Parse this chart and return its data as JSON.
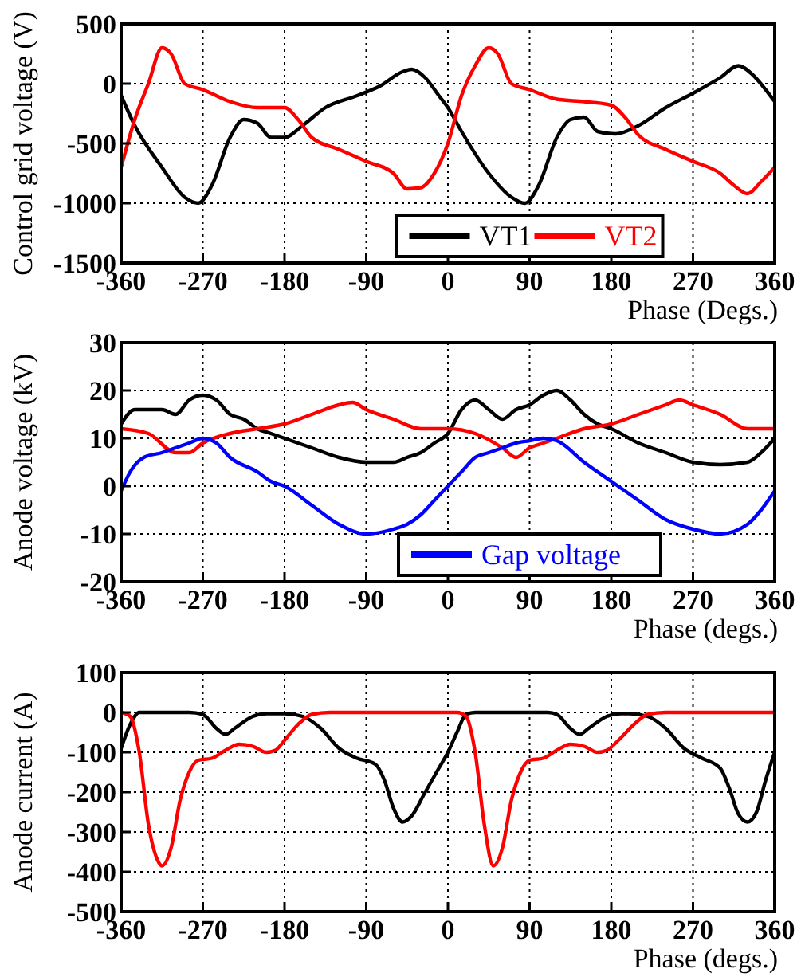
{
  "chart_data": [
    {
      "type": "line",
      "xlabel": "Phase (Degs.)",
      "ylabel": "Control grid voltage (V)",
      "xlim": [
        -360,
        360
      ],
      "xticks": [
        -360,
        -270,
        -180,
        -90,
        0,
        90,
        180,
        270,
        360
      ],
      "ylim": [
        -1500,
        500
      ],
      "yticks": [
        -1500,
        -1000,
        -500,
        0,
        500
      ],
      "grid": true,
      "legend": "bottom",
      "line_style": "solid",
      "series": [
        {
          "name": "VT1",
          "color": "#000000",
          "x": [
            -360,
            -345,
            -315,
            -290,
            -275,
            -260,
            -240,
            -225,
            -210,
            -195,
            -180,
            -160,
            -135,
            -100,
            -75,
            -50,
            -40,
            -25,
            -10,
            0,
            15,
            45,
            70,
            85,
            100,
            120,
            135,
            150,
            165,
            185,
            210,
            240,
            270,
            300,
            320,
            335,
            350,
            360
          ],
          "values": [
            -100,
            -350,
            -700,
            -950,
            -1000,
            -850,
            -450,
            -300,
            -330,
            -450,
            -450,
            -350,
            -200,
            -100,
            -20,
            100,
            120,
            50,
            -100,
            -200,
            -400,
            -750,
            -950,
            -1000,
            -850,
            -450,
            -300,
            -280,
            -400,
            -420,
            -350,
            -200,
            -80,
            50,
            150,
            80,
            -50,
            -150
          ]
        },
        {
          "name": "VT2",
          "color": "#ff0000",
          "x": [
            -360,
            -345,
            -330,
            -315,
            -305,
            -290,
            -270,
            -240,
            -210,
            -180,
            -165,
            -150,
            -120,
            -90,
            -60,
            -45,
            -30,
            -15,
            0,
            15,
            30,
            45,
            55,
            70,
            90,
            120,
            150,
            180,
            195,
            210,
            240,
            270,
            300,
            315,
            330,
            345,
            360
          ],
          "values": [
            -700,
            -300,
            0,
            300,
            250,
            0,
            -50,
            -150,
            -200,
            -200,
            -300,
            -450,
            -550,
            -650,
            -750,
            -880,
            -870,
            -750,
            -500,
            -100,
            150,
            300,
            250,
            0,
            -50,
            -130,
            -150,
            -180,
            -280,
            -430,
            -550,
            -650,
            -750,
            -850,
            -920,
            -820,
            -700
          ]
        }
      ]
    },
    {
      "type": "line",
      "xlabel": "Phase (degs.)",
      "ylabel": "Anode voltage (kV)",
      "xlim": [
        -360,
        360
      ],
      "xticks": [
        -360,
        -270,
        -180,
        -90,
        0,
        90,
        180,
        270,
        360
      ],
      "ylim": [
        -20,
        30
      ],
      "yticks": [
        -20,
        -10,
        0,
        10,
        20,
        30
      ],
      "grid": true,
      "legend": "bottom",
      "line_style": "solid",
      "series": [
        {
          "color": "#000000",
          "x": [
            -360,
            -345,
            -315,
            -300,
            -285,
            -270,
            -255,
            -240,
            -225,
            -210,
            -195,
            -180,
            -150,
            -120,
            -90,
            -60,
            -45,
            -30,
            -15,
            0,
            15,
            30,
            45,
            60,
            75,
            90,
            105,
            120,
            135,
            150,
            165,
            180,
            210,
            240,
            270,
            300,
            330,
            345,
            360
          ],
          "values": [
            13,
            16,
            16,
            15,
            18,
            19,
            18,
            15,
            14,
            12,
            11,
            10,
            8,
            6,
            5,
            5,
            6,
            7,
            9,
            11,
            16,
            18,
            16,
            14,
            16,
            17,
            19,
            20,
            18,
            15,
            13,
            12,
            9,
            7,
            5,
            4.5,
            5,
            7,
            10
          ]
        },
        {
          "color": "#ff0000",
          "x": [
            -360,
            -330,
            -300,
            -285,
            -270,
            -240,
            -210,
            -180,
            -150,
            -120,
            -105,
            -90,
            -60,
            -30,
            0,
            30,
            60,
            75,
            90,
            105,
            120,
            150,
            180,
            210,
            240,
            255,
            270,
            300,
            330,
            360
          ],
          "values": [
            12,
            11,
            7,
            7,
            9,
            11,
            12,
            13,
            15,
            17,
            17.5,
            16,
            14,
            12,
            12,
            11,
            8,
            6,
            8,
            9,
            10,
            12,
            13,
            15,
            17,
            18,
            17,
            15,
            12,
            12
          ]
        },
        {
          "name": "Gap voltage",
          "color": "#0000ff",
          "x": [
            -360,
            -350,
            -335,
            -315,
            -300,
            -285,
            -270,
            -255,
            -240,
            -210,
            -195,
            -180,
            -150,
            -120,
            -90,
            -60,
            -45,
            -30,
            -15,
            0,
            15,
            30,
            45,
            60,
            75,
            90,
            105,
            120,
            150,
            180,
            210,
            240,
            270,
            300,
            330,
            345,
            360
          ],
          "values": [
            -1,
            3,
            6,
            7,
            8,
            9,
            10,
            9,
            6,
            3,
            1,
            0,
            -4,
            -8,
            -10,
            -9,
            -8,
            -6,
            -3,
            0,
            3,
            6,
            7,
            8,
            9,
            9.5,
            10,
            9.5,
            5,
            1,
            -3,
            -7,
            -9,
            -10,
            -8,
            -5,
            -1
          ]
        }
      ]
    },
    {
      "type": "line",
      "xlabel": "Phase (degs.)",
      "ylabel": "Anode current (A)",
      "xlim": [
        -360,
        360
      ],
      "xticks": [
        -360,
        -270,
        -180,
        -90,
        0,
        90,
        180,
        270,
        360
      ],
      "ylim": [
        -500,
        100
      ],
      "yticks": [
        -500,
        -400,
        -300,
        -200,
        -100,
        0,
        100
      ],
      "grid": true,
      "line_style": "solid",
      "series": [
        {
          "color": "#000000",
          "x": [
            -360,
            -350,
            -340,
            -300,
            -285,
            -270,
            -255,
            -245,
            -235,
            -215,
            -200,
            -180,
            -160,
            -140,
            -120,
            -100,
            -80,
            -70,
            -60,
            -50,
            -40,
            -25,
            -10,
            0,
            10,
            20,
            30,
            110,
            120,
            135,
            145,
            155,
            175,
            190,
            200,
            220,
            240,
            260,
            280,
            300,
            310,
            320,
            330,
            340,
            350,
            360
          ],
          "values": [
            -90,
            -30,
            0,
            0,
            0,
            -5,
            -40,
            -55,
            -40,
            -10,
            -3,
            -3,
            -10,
            -40,
            -90,
            -115,
            -130,
            -170,
            -240,
            -275,
            -260,
            -200,
            -140,
            -100,
            -50,
            -5,
            0,
            0,
            -5,
            -40,
            -55,
            -40,
            -10,
            -3,
            -3,
            -10,
            -40,
            -90,
            -115,
            -140,
            -190,
            -255,
            -275,
            -250,
            -170,
            -100
          ]
        },
        {
          "color": "#ff0000",
          "x": [
            -360,
            -350,
            -340,
            -330,
            -320,
            -315,
            -305,
            -295,
            -285,
            -275,
            -260,
            -245,
            -230,
            -215,
            -200,
            -190,
            -180,
            -165,
            -150,
            -130,
            10,
            20,
            30,
            40,
            50,
            60,
            70,
            80,
            90,
            105,
            120,
            135,
            150,
            165,
            175,
            190,
            205,
            220,
            240,
            360
          ],
          "values": [
            0,
            -10,
            -100,
            -280,
            -370,
            -385,
            -340,
            -220,
            -150,
            -120,
            -115,
            -95,
            -80,
            -85,
            -100,
            -95,
            -70,
            -30,
            -5,
            0,
            0,
            -10,
            -100,
            -280,
            -385,
            -340,
            -220,
            -150,
            -120,
            -115,
            -95,
            -80,
            -85,
            -100,
            -95,
            -65,
            -30,
            -5,
            0,
            0
          ]
        }
      ]
    }
  ]
}
